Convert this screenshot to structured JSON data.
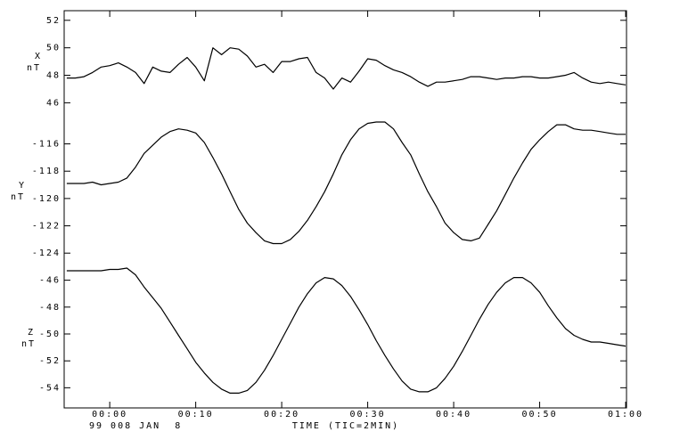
{
  "chart_data": [
    {
      "type": "line",
      "ylabel": "X",
      "yunit": "nT",
      "color": "#000000",
      "x": [
        -5,
        -4,
        -3,
        -2,
        -1,
        0,
        1,
        2,
        3,
        4,
        5,
        6,
        7,
        8,
        9,
        10,
        11,
        12,
        13,
        14,
        15,
        16,
        17,
        18,
        19,
        20,
        21,
        22,
        23,
        24,
        25,
        26,
        27,
        28,
        29,
        30,
        31,
        32,
        33,
        34,
        35,
        36,
        37,
        38,
        39,
        40,
        41,
        42,
        43,
        44,
        45,
        46,
        47,
        48,
        49,
        50,
        51,
        52,
        53,
        54,
        55,
        56,
        57,
        58,
        59,
        60
      ],
      "values": [
        47.8,
        47.8,
        47.9,
        48.2,
        48.6,
        48.7,
        48.9,
        48.6,
        48.2,
        47.4,
        48.6,
        48.3,
        48.2,
        48.8,
        49.3,
        48.6,
        47.6,
        50.0,
        49.5,
        50.0,
        49.9,
        49.4,
        48.6,
        48.8,
        48.2,
        49.0,
        49.0,
        49.2,
        49.3,
        48.2,
        47.8,
        47.0,
        47.8,
        47.5,
        48.3,
        49.2,
        49.1,
        48.7,
        48.4,
        48.2,
        47.9,
        47.5,
        47.2,
        47.5,
        47.5,
        47.6,
        47.7,
        47.9,
        47.9,
        47.8,
        47.7,
        47.8,
        47.8,
        47.9,
        47.9,
        47.8,
        47.8,
        47.9,
        48.0,
        48.2,
        47.8,
        47.5,
        47.4,
        47.5,
        47.4,
        47.3
      ],
      "xlim": [
        -5.3,
        60.1
      ],
      "ylim": [
        44.6,
        52.7
      ],
      "yticks": [
        46,
        48,
        50,
        52
      ]
    },
    {
      "type": "line",
      "ylabel": "Y",
      "yunit": "nT",
      "color": "#000000",
      "x": [
        -5,
        -4,
        -3,
        -2,
        -1,
        0,
        1,
        2,
        3,
        4,
        5,
        6,
        7,
        8,
        9,
        10,
        11,
        12,
        13,
        14,
        15,
        16,
        17,
        18,
        19,
        20,
        21,
        22,
        23,
        24,
        25,
        26,
        27,
        28,
        29,
        30,
        31,
        32,
        33,
        34,
        35,
        36,
        37,
        38,
        39,
        40,
        41,
        42,
        43,
        44,
        45,
        46,
        47,
        48,
        49,
        50,
        51,
        52,
        53,
        54,
        55,
        56,
        57,
        58,
        59,
        60
      ],
      "values": [
        -118.9,
        -118.9,
        -118.9,
        -118.8,
        -119.0,
        -118.9,
        -118.8,
        -118.5,
        -117.7,
        -116.7,
        -116.1,
        -115.5,
        -115.1,
        -114.9,
        -115.0,
        -115.2,
        -115.9,
        -117.0,
        -118.2,
        -119.5,
        -120.8,
        -121.8,
        -122.5,
        -123.1,
        -123.3,
        -123.3,
        -123.0,
        -122.4,
        -121.6,
        -120.6,
        -119.5,
        -118.2,
        -116.8,
        -115.7,
        -114.9,
        -114.5,
        -114.4,
        -114.4,
        -114.9,
        -115.9,
        -116.8,
        -118.2,
        -119.5,
        -120.6,
        -121.8,
        -122.5,
        -123.0,
        -123.1,
        -122.9,
        -121.9,
        -120.9,
        -119.7,
        -118.5,
        -117.4,
        -116.4,
        -115.7,
        -115.1,
        -114.6,
        -114.6,
        -114.9,
        -115.0,
        -115.0,
        -115.1,
        -115.2,
        -115.3,
        -115.3
      ],
      "xlim": [
        -5.3,
        60.1
      ],
      "ylim": [
        -124.9,
        -114.4
      ],
      "yticks": [
        -124,
        -122,
        -120,
        -118,
        -116
      ]
    },
    {
      "type": "line",
      "ylabel": "Z",
      "yunit": "nT",
      "color": "#000000",
      "x": [
        -5,
        -4,
        -3,
        -2,
        -1,
        0,
        1,
        2,
        3,
        4,
        5,
        6,
        7,
        8,
        9,
        10,
        11,
        12,
        13,
        14,
        15,
        16,
        17,
        18,
        19,
        20,
        21,
        22,
        23,
        24,
        25,
        26,
        27,
        28,
        29,
        30,
        31,
        32,
        33,
        34,
        35,
        36,
        37,
        38,
        39,
        40,
        41,
        42,
        43,
        44,
        45,
        46,
        47,
        48,
        49,
        50,
        51,
        52,
        53,
        54,
        55,
        56,
        57,
        58,
        59,
        60
      ],
      "values": [
        -45.3,
        -45.3,
        -45.3,
        -45.3,
        -45.3,
        -45.2,
        -45.2,
        -45.1,
        -45.6,
        -46.5,
        -47.3,
        -48.1,
        -49.1,
        -50.1,
        -51.1,
        -52.1,
        -52.9,
        -53.6,
        -54.1,
        -54.4,
        -54.4,
        -54.2,
        -53.6,
        -52.7,
        -51.6,
        -50.4,
        -49.2,
        -48.0,
        -47.0,
        -46.2,
        -45.8,
        -45.9,
        -46.4,
        -47.2,
        -48.2,
        -49.3,
        -50.5,
        -51.6,
        -52.6,
        -53.5,
        -54.1,
        -54.3,
        -54.3,
        -54.0,
        -53.3,
        -52.4,
        -51.3,
        -50.1,
        -48.9,
        -47.8,
        -46.9,
        -46.2,
        -45.8,
        -45.8,
        -46.2,
        -46.9,
        -47.9,
        -48.8,
        -49.6,
        -50.1,
        -50.4,
        -50.6,
        -50.6,
        -50.7,
        -50.8,
        -50.9
      ],
      "xlim": [
        -5.3,
        60.1
      ],
      "ylim": [
        -55.5,
        -44.9
      ],
      "yticks": [
        -54,
        -52,
        -50,
        -48,
        -46
      ],
      "xticks": [
        {
          "value": 0,
          "label": "00:00"
        },
        {
          "value": 10,
          "label": "00:10"
        },
        {
          "value": 20,
          "label": "00:20"
        },
        {
          "value": 30,
          "label": "00:30"
        },
        {
          "value": 40,
          "label": "00:40"
        },
        {
          "value": 50,
          "label": "00:50"
        },
        {
          "value": 60,
          "label": "01:00"
        }
      ],
      "date_label": "99 008 JAN  8",
      "xlabel": "TIME (TIC=2MIN)"
    }
  ]
}
